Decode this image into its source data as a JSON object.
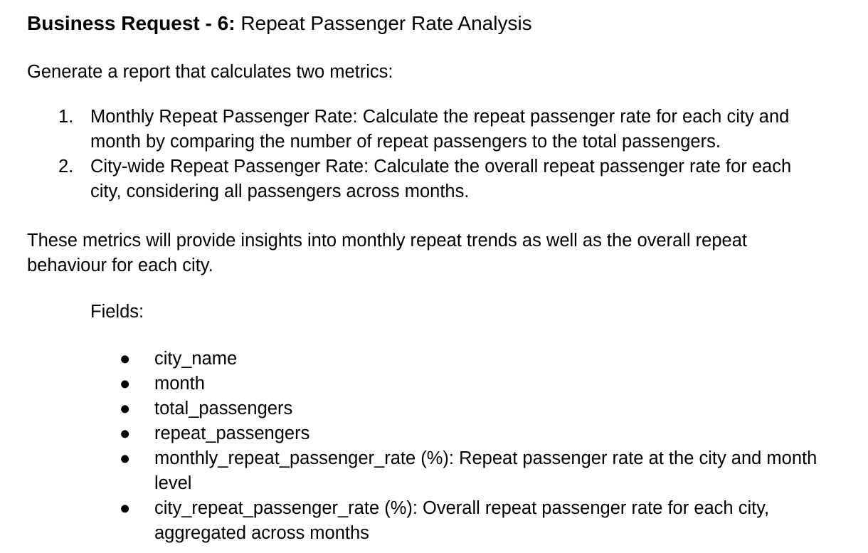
{
  "title": {
    "bold": "Business Request - 6:",
    "text": "Repeat Passenger Rate Analysis"
  },
  "intro": "Generate a report that calculates two metrics:",
  "metrics": [
    {
      "number": "1.",
      "text": "Monthly Repeat Passenger Rate: Calculate the repeat passenger rate for each city and month by comparing the number of repeat passengers to the total passengers."
    },
    {
      "number": "2.",
      "text": "City-wide Repeat Passenger Rate: Calculate the overall repeat passenger rate for each city, considering all passengers across months."
    }
  ],
  "summary": "These metrics will provide insights into monthly repeat trends as well as the overall repeat behaviour for each city.",
  "fields_label": "Fields:",
  "bullet_glyph": "●",
  "fields": [
    "city_name",
    "month",
    "total_passengers",
    "repeat_passengers",
    "monthly_repeat_passenger_rate (%): Repeat passenger rate at the city and month level",
    "city_repeat_passenger_rate (%): Overall repeat passenger rate for each city, aggregated across months"
  ]
}
